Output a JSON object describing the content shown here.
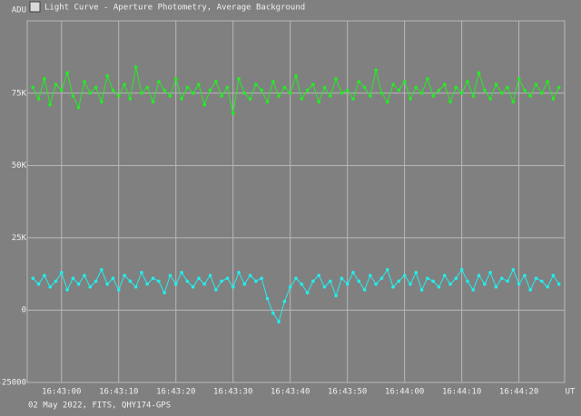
{
  "title": "Light Curve - Aperture Photometry, Average Background",
  "footer": "02 May 2022, FITS, QHY174-GPS",
  "chart_data": {
    "type": "line",
    "y_label": "ADU",
    "x_label": "UT",
    "xlim": [
      "16:42:54",
      "16:44:28"
    ],
    "xticks": [
      "16:43:00",
      "16:43:10",
      "16:43:20",
      "16:43:30",
      "16:43:40",
      "16:43:50",
      "16:44:00",
      "16:44:10",
      "16:44:20"
    ],
    "ylim": [
      -25000,
      100000
    ],
    "yticks": [
      -25000,
      0,
      {
        "value": 25000,
        "label": "25K"
      },
      {
        "value": 50000,
        "label": "50K"
      },
      {
        "value": 75000,
        "label": "75K"
      }
    ],
    "grid": true,
    "x": [
      "16:42:55",
      "16:42:56",
      "16:42:57",
      "16:42:58",
      "16:42:59",
      "16:43:00",
      "16:43:01",
      "16:43:02",
      "16:43:03",
      "16:43:04",
      "16:43:05",
      "16:43:06",
      "16:43:07",
      "16:43:08",
      "16:43:09",
      "16:43:10",
      "16:43:11",
      "16:43:12",
      "16:43:13",
      "16:43:14",
      "16:43:15",
      "16:43:16",
      "16:43:17",
      "16:43:18",
      "16:43:19",
      "16:43:20",
      "16:43:21",
      "16:43:22",
      "16:43:23",
      "16:43:24",
      "16:43:25",
      "16:43:26",
      "16:43:27",
      "16:43:28",
      "16:43:29",
      "16:43:30",
      "16:43:31",
      "16:43:32",
      "16:43:33",
      "16:43:34",
      "16:43:35",
      "16:43:36",
      "16:43:37",
      "16:43:38",
      "16:43:39",
      "16:43:40",
      "16:43:41",
      "16:43:42",
      "16:43:43",
      "16:43:44",
      "16:43:45",
      "16:43:46",
      "16:43:47",
      "16:43:48",
      "16:43:49",
      "16:43:50",
      "16:43:51",
      "16:43:52",
      "16:43:53",
      "16:43:54",
      "16:43:55",
      "16:43:56",
      "16:43:57",
      "16:43:58",
      "16:43:59",
      "16:44:00",
      "16:44:01",
      "16:44:02",
      "16:44:03",
      "16:44:04",
      "16:44:05",
      "16:44:06",
      "16:44:07",
      "16:44:08",
      "16:44:09",
      "16:44:10",
      "16:44:11",
      "16:44:12",
      "16:44:13",
      "16:44:14",
      "16:44:15",
      "16:44:16",
      "16:44:17",
      "16:44:18",
      "16:44:19",
      "16:44:20",
      "16:44:21",
      "16:44:22",
      "16:44:23",
      "16:44:24",
      "16:44:25",
      "16:44:26",
      "16:44:27"
    ],
    "series": [
      {
        "color": "#22ee22",
        "values": [
          77000,
          73000,
          80000,
          71000,
          78000,
          76000,
          82000,
          74000,
          70000,
          79000,
          75000,
          77000,
          72000,
          81000,
          76000,
          74000,
          78000,
          73000,
          84000,
          75000,
          77000,
          72000,
          79000,
          76000,
          74000,
          80000,
          73000,
          77000,
          75000,
          78000,
          71000,
          76000,
          79000,
          74000,
          77000,
          68000,
          80000,
          75000,
          73000,
          78000,
          76000,
          72000,
          79000,
          74000,
          77000,
          75000,
          81000,
          73000,
          76000,
          78000,
          72000,
          77000,
          74000,
          80000,
          75000,
          76000,
          73000,
          79000,
          77000,
          74000,
          83000,
          75000,
          72000,
          78000,
          76000,
          79000,
          73000,
          77000,
          75000,
          80000,
          74000,
          76000,
          78000,
          72000,
          77000,
          75000,
          79000,
          74000,
          82000,
          76000,
          73000,
          78000,
          75000,
          77000,
          72000,
          80000,
          76000,
          74000,
          78000,
          75000,
          79000,
          73000,
          77000
        ]
      },
      {
        "color": "#22eeee",
        "values": [
          11000,
          9000,
          12000,
          8000,
          10000,
          13000,
          7000,
          11000,
          9000,
          12000,
          8000,
          10000,
          14000,
          9000,
          11000,
          7000,
          12000,
          10000,
          8000,
          13000,
          9000,
          11000,
          10000,
          6000,
          12000,
          9000,
          13000,
          10000,
          8000,
          11000,
          9000,
          12000,
          7000,
          10000,
          11000,
          8000,
          13000,
          9000,
          12000,
          10000,
          11000,
          4000,
          -1000,
          -4000,
          3000,
          8000,
          11000,
          9000,
          6000,
          10000,
          12000,
          8000,
          10000,
          5000,
          11000,
          9000,
          13000,
          10000,
          7000,
          12000,
          9000,
          11000,
          14000,
          8000,
          10000,
          12000,
          9000,
          13000,
          7000,
          11000,
          10000,
          8000,
          12000,
          9000,
          11000,
          14000,
          10000,
          7000,
          12000,
          9000,
          13000,
          8000,
          11000,
          10000,
          14000,
          9000,
          12000,
          7000,
          11000,
          10000,
          8000,
          12000,
          9000
        ]
      }
    ]
  }
}
